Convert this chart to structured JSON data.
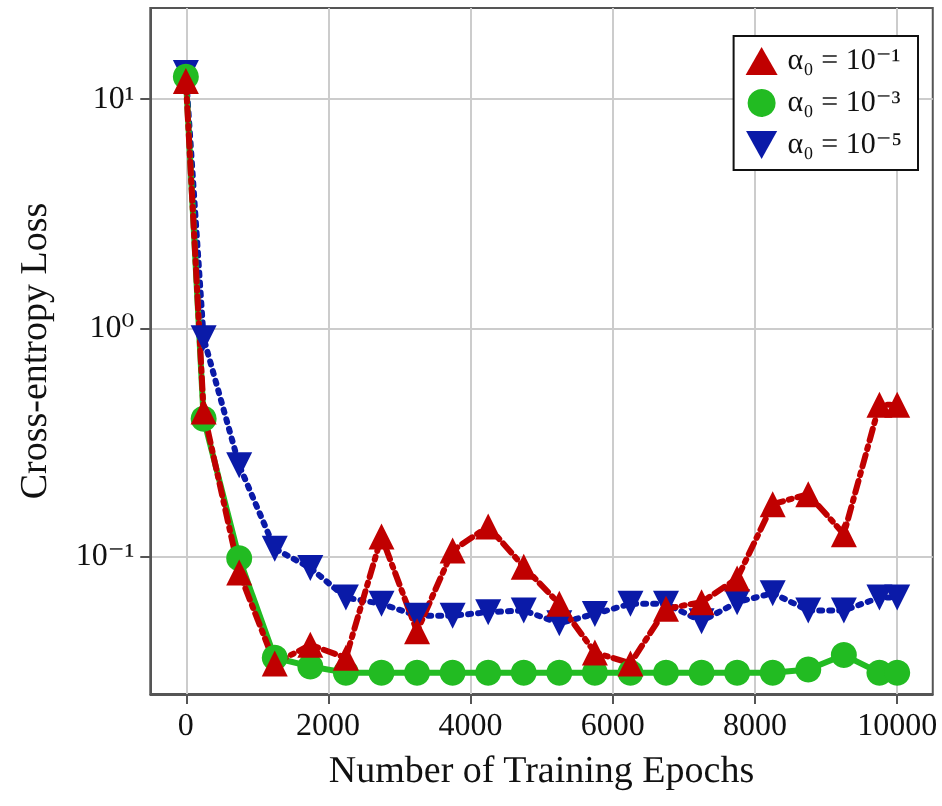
{
  "chart_data": {
    "type": "line",
    "xlabel": "Number of Training Epochs",
    "ylabel": "Cross-entropy Loss",
    "x": [
      0,
      250,
      750,
      1250,
      1750,
      2250,
      2750,
      3250,
      3750,
      4250,
      4750,
      5250,
      5750,
      6250,
      6750,
      7250,
      7750,
      8250,
      8750,
      9250,
      9750,
      10000
    ],
    "series": [
      {
        "name": "α₀ = 10⁻¹",
        "color": "#c00000",
        "marker": "triangle",
        "line_style": "dashed",
        "values": [
          12,
          0.43,
          0.085,
          0.034,
          0.041,
          0.036,
          0.122,
          0.047,
          0.106,
          0.135,
          0.09,
          0.062,
          0.038,
          0.034,
          0.059,
          0.063,
          0.08,
          0.169,
          0.187,
          0.125,
          0.46,
          0.46
        ]
      },
      {
        "name": "α₀ = 10⁻³",
        "color": "#22bb22",
        "marker": "circle",
        "line_style": "solid",
        "values": [
          12.5,
          0.4,
          0.098,
          0.036,
          0.033,
          0.031,
          0.031,
          0.031,
          0.031,
          0.031,
          0.031,
          0.031,
          0.031,
          0.031,
          0.031,
          0.031,
          0.031,
          0.031,
          0.032,
          0.037,
          0.031,
          0.031
        ]
      },
      {
        "name": "α₀ = 10⁻⁵",
        "color": "#0a1aa8",
        "marker": "triangle-down",
        "line_style": "dotted",
        "values": [
          13,
          0.9,
          0.25,
          0.108,
          0.089,
          0.066,
          0.062,
          0.055,
          0.055,
          0.057,
          0.058,
          0.051,
          0.056,
          0.062,
          0.062,
          0.052,
          0.063,
          0.069,
          0.058,
          0.058,
          0.066,
          0.066
        ]
      }
    ],
    "log": "y",
    "xlim": [
      -500,
      10500
    ],
    "xticks": [
      0,
      2000,
      4000,
      6000,
      8000,
      10000
    ],
    "ylim": [
      0.025,
      25
    ],
    "yticks": [
      {
        "value": 0.1,
        "label": "10⁻¹"
      },
      {
        "value": 1,
        "label": "10⁰"
      },
      {
        "value": 10,
        "label": "10¹"
      }
    ],
    "grid": true,
    "legend": "top right"
  }
}
